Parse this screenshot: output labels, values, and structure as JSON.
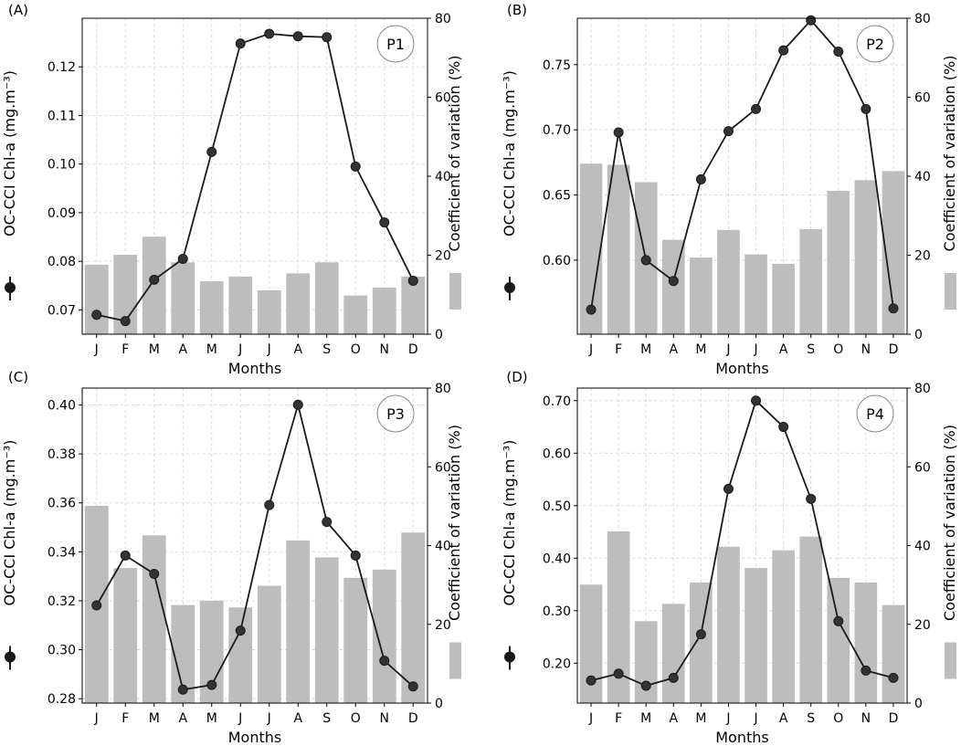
{
  "chart_data": [
    {
      "type": "bar+line",
      "panel_label": "(A)",
      "badge": "P1",
      "xlabel": "Months",
      "ylabel_left": "OC-CCI Chl-a (mg.m⁻³)",
      "ylabel_right": "Coefficient of variation (%)",
      "categories": [
        "J",
        "F",
        "M",
        "A",
        "M",
        "J",
        "J",
        "A",
        "S",
        "O",
        "N",
        "D"
      ],
      "line_values": [
        0.069,
        0.0677,
        0.0762,
        0.0805,
        0.1025,
        0.1248,
        0.1268,
        0.1263,
        0.1261,
        0.0995,
        0.088,
        0.076
      ],
      "bar_values": [
        17.6,
        20.1,
        24.7,
        18.2,
        13.4,
        14.6,
        11.1,
        15.4,
        18.2,
        9.8,
        11.8,
        14.6
      ],
      "ylim_left": [
        0.065,
        0.13
      ],
      "yticks_left": [
        "0.07",
        "0.08",
        "0.09",
        "0.10",
        "0.11",
        "0.12"
      ],
      "ytick_values_left": [
        0.07,
        0.08,
        0.09,
        0.1,
        0.11,
        0.12
      ],
      "ylim_right": [
        0,
        80
      ],
      "yticks_right": [
        "0",
        "20",
        "40",
        "60",
        "80"
      ],
      "grid": true
    },
    {
      "type": "bar+line",
      "panel_label": "(B)",
      "badge": "P2",
      "xlabel": "Months",
      "ylabel_left": "OC-CCI Chl-a (mg.m⁻³)",
      "ylabel_right": "Coefficient of variation (%)",
      "categories": [
        "J",
        "F",
        "M",
        "A",
        "M",
        "J",
        "J",
        "A",
        "S",
        "O",
        "N",
        "D"
      ],
      "line_values": [
        0.562,
        0.698,
        0.6,
        0.584,
        0.662,
        0.699,
        0.716,
        0.761,
        0.784,
        0.76,
        0.716,
        0.563
      ],
      "bar_values": [
        43.2,
        42.9,
        38.5,
        23.9,
        19.4,
        26.4,
        20.2,
        17.8,
        26.6,
        36.3,
        39.0,
        41.3
      ],
      "ylim_left": [
        0.5432,
        0.7856
      ],
      "yticks_left": [
        "0.60",
        "0.65",
        "0.70",
        "0.75"
      ],
      "ytick_values_left": [
        0.6,
        0.65,
        0.7,
        0.75
      ],
      "ylim_right": [
        0,
        80
      ],
      "yticks_right": [
        "0",
        "20",
        "40",
        "60",
        "80"
      ],
      "grid": true
    },
    {
      "type": "bar+line",
      "panel_label": "(C)",
      "badge": "P3",
      "xlabel": "Months",
      "ylabel_left": "OC-CCI Chl-a (mg.m⁻³)",
      "ylabel_right": "Coefficient of variation (%)",
      "categories": [
        "J",
        "F",
        "M",
        "A",
        "M",
        "J",
        "J",
        "A",
        "S",
        "O",
        "N",
        "D"
      ],
      "line_values": [
        0.3181,
        0.3385,
        0.331,
        0.2837,
        0.2856,
        0.3078,
        0.3591,
        0.4001,
        0.3522,
        0.3385,
        0.2955,
        0.285
      ],
      "bar_values": [
        50.1,
        34.3,
        42.6,
        24.9,
        26.0,
        24.3,
        29.8,
        41.3,
        37.0,
        31.8,
        33.9,
        43.3
      ],
      "ylim_left": [
        0.2782,
        0.4069
      ],
      "yticks_left": [
        "0.28",
        "0.30",
        "0.32",
        "0.34",
        "0.36",
        "0.38",
        "0.40"
      ],
      "ytick_values_left": [
        0.28,
        0.3,
        0.32,
        0.34,
        0.36,
        0.38,
        0.4
      ],
      "ylim_right": [
        0,
        80
      ],
      "yticks_right": [
        "0",
        "20",
        "40",
        "60",
        "80"
      ],
      "grid": true
    },
    {
      "type": "bar+line",
      "panel_label": "(D)",
      "badge": "P4",
      "xlabel": "Months",
      "ylabel_left": "OC-CCI Chl-a (mg.m⁻³)",
      "ylabel_right": "Coefficient of variation (%)",
      "categories": [
        "J",
        "F",
        "M",
        "A",
        "M",
        "J",
        "J",
        "A",
        "S",
        "O",
        "N",
        "D"
      ],
      "line_values": [
        0.167,
        0.18,
        0.157,
        0.172,
        0.255,
        0.532,
        0.7,
        0.65,
        0.513,
        0.28,
        0.186,
        0.172
      ],
      "bar_values": [
        30.1,
        43.6,
        20.8,
        25.2,
        30.6,
        39.7,
        34.3,
        38.8,
        42.3,
        31.8,
        30.6,
        24.9
      ],
      "ylim_left": [
        0.124,
        0.724
      ],
      "yticks_left": [
        "0.20",
        "0.30",
        "0.40",
        "0.50",
        "0.60",
        "0.70"
      ],
      "ytick_values_left": [
        0.2,
        0.3,
        0.4,
        0.5,
        0.6,
        0.7
      ],
      "ylim_right": [
        0,
        80
      ],
      "yticks_right": [
        "0",
        "20",
        "40",
        "60",
        "80"
      ],
      "grid": true
    }
  ],
  "colors": {
    "bar": "#bdbdbd",
    "line": "#1a1a1a",
    "marker": "#333333",
    "grid": "#d9d9d9",
    "axis": "#000000"
  }
}
